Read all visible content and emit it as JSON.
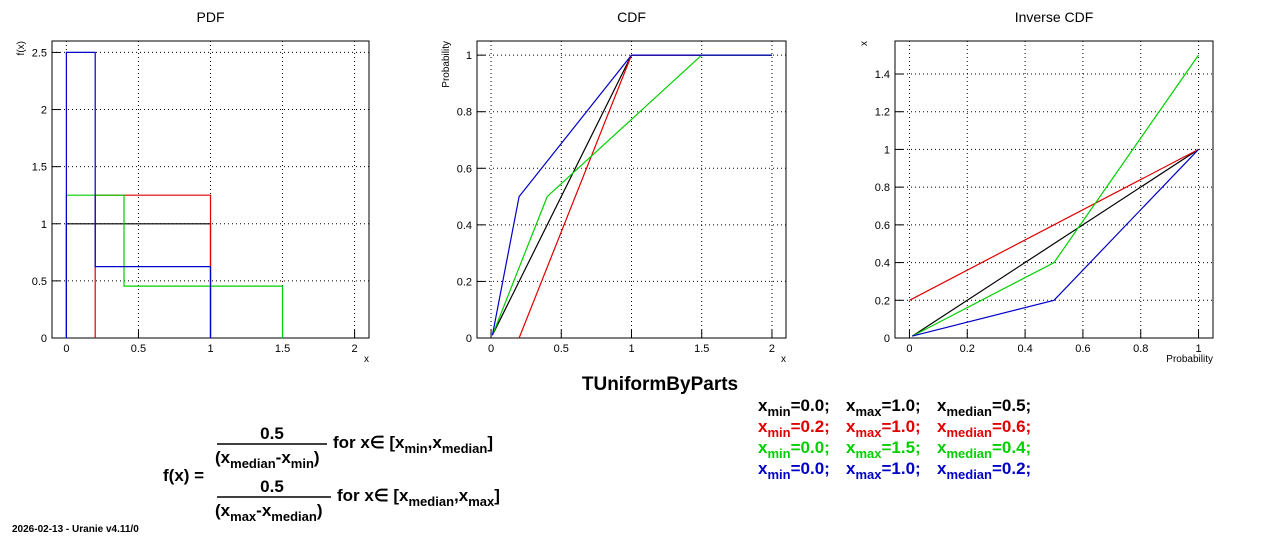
{
  "main_title": "TUniformByParts",
  "footer": "2026-02-13 - Uranie v4.11/0",
  "colors": {
    "black": "#000000",
    "red": "#e00000",
    "green": "#00d000",
    "blue": "#0000c8"
  },
  "formula": {
    "lhs": "f(x) =",
    "num": "0.5",
    "part1": {
      "den_a": "x",
      "den_a_sub": "median",
      "den_b": "-x",
      "den_b_sub": "min",
      "cond": "for x∈ [x",
      "c1_sub": "min",
      "c2": ",x",
      "c2_sub": "median",
      "c3": "]"
    },
    "part2": {
      "den_a": "x",
      "den_a_sub": "max",
      "den_b": "-x",
      "den_b_sub": "median",
      "cond": "for x∈ [x",
      "c1_sub": "median",
      "c2": ",x",
      "c2_sub": "max",
      "c3": "]"
    }
  },
  "params": [
    {
      "color": "#000000",
      "min": "=0.0;",
      "max": "=1.0;",
      "median": "=0.5;"
    },
    {
      "color": "#e00000",
      "min": "=0.2;",
      "max": "=1.0;",
      "median": "=0.6;"
    },
    {
      "color": "#00d000",
      "min": "=0.0;",
      "max": "=1.5;",
      "median": "=0.4;"
    },
    {
      "color": "#0000c8",
      "min": "=0.0;",
      "max": "=1.0;",
      "median": "=0.2;"
    }
  ],
  "chart_data": [
    {
      "type": "line",
      "title": "PDF",
      "xlabel": "x",
      "ylabel": "f(x)",
      "xlim": [
        -0.1,
        2.1
      ],
      "ylim": [
        0,
        2.6
      ],
      "xticks": [
        0,
        0.5,
        1,
        1.5,
        2
      ],
      "xtick_labels": [
        "0",
        "0.5",
        "1",
        "1.5",
        "2"
      ],
      "yticks": [
        0,
        0.5,
        1,
        1.5,
        2,
        2.5
      ],
      "ytick_labels": [
        "0",
        "0.5",
        "1",
        "1.5",
        "2",
        "2.5"
      ],
      "grid": true,
      "series": [
        {
          "color": "#000000",
          "points": [
            [
              0,
              0
            ],
            [
              0,
              1
            ],
            [
              1,
              1
            ],
            [
              1,
              0
            ]
          ]
        },
        {
          "color": "#e00000",
          "points": [
            [
              0.2,
              0
            ],
            [
              0.2,
              1.25
            ],
            [
              1,
              1.25
            ],
            [
              1,
              0
            ]
          ]
        },
        {
          "color": "#00d000",
          "points": [
            [
              0,
              0
            ],
            [
              0,
              1.25
            ],
            [
              0.4,
              1.25
            ],
            [
              0.4,
              0.4545
            ],
            [
              1.5,
              0.4545
            ],
            [
              1.5,
              0
            ]
          ]
        },
        {
          "color": "#0000c8",
          "points": [
            [
              0,
              0
            ],
            [
              0,
              2.5
            ],
            [
              0.2,
              2.5
            ],
            [
              0.2,
              0.625
            ],
            [
              1,
              0.625
            ],
            [
              1,
              0
            ]
          ]
        }
      ]
    },
    {
      "type": "line",
      "title": "CDF",
      "xlabel": "x",
      "ylabel": "Probability",
      "xlim": [
        -0.1,
        2.1
      ],
      "ylim": [
        0,
        1.05
      ],
      "xticks": [
        0,
        0.5,
        1,
        1.5,
        2
      ],
      "xtick_labels": [
        "0",
        "0.5",
        "1",
        "1.5",
        "2"
      ],
      "yticks": [
        0,
        0.2,
        0.4,
        0.6,
        0.8,
        1
      ],
      "ytick_labels": [
        "0",
        "0.2",
        "0.4",
        "0.6",
        "0.8",
        "1"
      ],
      "grid": true,
      "series": [
        {
          "color": "#000000",
          "points": [
            [
              0.01,
              0.01
            ],
            [
              1,
              1
            ],
            [
              2,
              1
            ]
          ]
        },
        {
          "color": "#e00000",
          "points": [
            [
              0.2,
              0
            ],
            [
              1,
              1
            ],
            [
              2,
              1
            ]
          ]
        },
        {
          "color": "#00d000",
          "points": [
            [
              0.01,
              0.01
            ],
            [
              0.4,
              0.5
            ],
            [
              1.5,
              1
            ],
            [
              2,
              1
            ]
          ]
        },
        {
          "color": "#0000c8",
          "points": [
            [
              0.01,
              0.01
            ],
            [
              0.2,
              0.5
            ],
            [
              1,
              1
            ],
            [
              2,
              1
            ]
          ]
        }
      ]
    },
    {
      "type": "line",
      "title": "Inverse CDF",
      "xlabel": "Probability",
      "ylabel": "x",
      "xlim": [
        -0.05,
        1.05
      ],
      "ylim": [
        0,
        1.575
      ],
      "xticks": [
        0,
        0.2,
        0.4,
        0.6,
        0.8,
        1
      ],
      "xtick_labels": [
        "0",
        "0.2",
        "0.4",
        "0.6",
        "0.8",
        "1"
      ],
      "yticks": [
        0,
        0.2,
        0.4,
        0.6,
        0.8,
        1,
        1.2,
        1.4
      ],
      "ytick_labels": [
        "0",
        "0.2",
        "0.4",
        "0.6",
        "0.8",
        "1",
        "1.2",
        "1.4"
      ],
      "grid": true,
      "series": [
        {
          "color": "#000000",
          "points": [
            [
              0.01,
              0.01
            ],
            [
              1,
              1
            ]
          ]
        },
        {
          "color": "#e00000",
          "points": [
            [
              0,
              0.2
            ],
            [
              1,
              1
            ]
          ]
        },
        {
          "color": "#00d000",
          "points": [
            [
              0.01,
              0.01
            ],
            [
              0.5,
              0.4
            ],
            [
              1,
              1.5
            ]
          ]
        },
        {
          "color": "#0000c8",
          "points": [
            [
              0.01,
              0.01
            ],
            [
              0.5,
              0.2
            ],
            [
              1,
              1
            ]
          ]
        }
      ]
    }
  ]
}
